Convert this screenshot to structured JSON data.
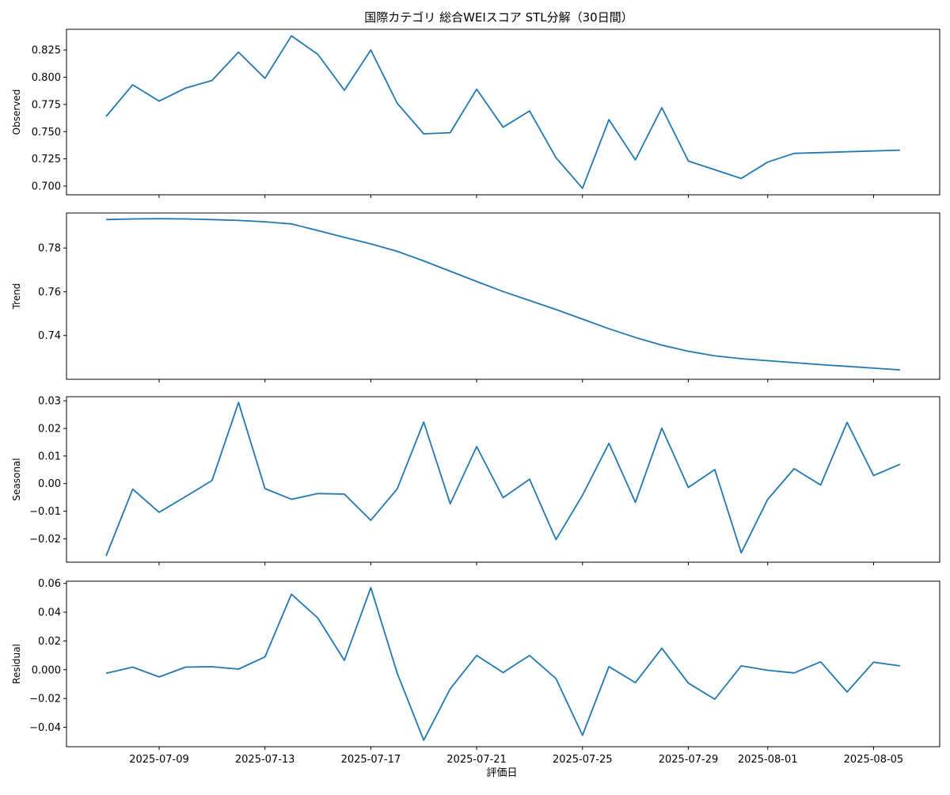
{
  "figure": {
    "title": "国際カテゴリ 総合WEIスコア STL分解（30日間）",
    "xlabel": "評価日",
    "line_color": "#1f77b4",
    "x_ticks": [
      "2025-07-09",
      "2025-07-13",
      "2025-07-17",
      "2025-07-21",
      "2025-07-25",
      "2025-07-29",
      "2025-08-01",
      "2025-08-05"
    ]
  },
  "chart_data": [
    {
      "type": "line",
      "ylabel": "Observed",
      "ylim": [
        0.692,
        0.844
      ],
      "yticks": [
        0.7,
        0.725,
        0.75,
        0.775,
        0.8,
        0.825
      ],
      "ytick_labels": [
        "0.700",
        "0.725",
        "0.750",
        "0.775",
        "0.800",
        "0.825"
      ],
      "x": [
        "2025-07-07",
        "2025-07-08",
        "2025-07-09",
        "2025-07-10",
        "2025-07-11",
        "2025-07-12",
        "2025-07-13",
        "2025-07-14",
        "2025-07-15",
        "2025-07-16",
        "2025-07-17",
        "2025-07-18",
        "2025-07-19",
        "2025-07-20",
        "2025-07-21",
        "2025-07-22",
        "2025-07-23",
        "2025-07-24",
        "2025-07-25",
        "2025-07-26",
        "2025-07-27",
        "2025-07-28",
        "2025-07-29",
        "2025-07-30",
        "2025-07-31",
        "2025-08-01",
        "2025-08-02",
        "2025-08-06"
      ],
      "values": [
        0.764,
        0.793,
        0.778,
        0.79,
        0.797,
        0.823,
        0.799,
        0.838,
        0.821,
        0.788,
        0.825,
        0.776,
        0.748,
        0.749,
        0.789,
        0.754,
        0.769,
        0.726,
        0.698,
        0.761,
        0.724,
        0.772,
        0.723,
        0.715,
        0.707,
        0.722,
        0.73,
        0.733
      ]
    },
    {
      "type": "line",
      "ylabel": "Trend",
      "ylim": [
        0.72,
        0.796
      ],
      "yticks": [
        0.74,
        0.76,
        0.78
      ],
      "ytick_labels": [
        "0.74",
        "0.76",
        "0.78"
      ],
      "x": [
        "2025-07-07",
        "2025-07-08",
        "2025-07-09",
        "2025-07-10",
        "2025-07-11",
        "2025-07-12",
        "2025-07-13",
        "2025-07-14",
        "2025-07-15",
        "2025-07-16",
        "2025-07-17",
        "2025-07-18",
        "2025-07-19",
        "2025-07-20",
        "2025-07-21",
        "2025-07-22",
        "2025-07-23",
        "2025-07-24",
        "2025-07-25",
        "2025-07-26",
        "2025-07-27",
        "2025-07-28",
        "2025-07-29",
        "2025-07-30",
        "2025-07-31",
        "2025-08-01",
        "2025-08-02",
        "2025-08-03",
        "2025-08-04",
        "2025-08-05",
        "2025-08-06"
      ],
      "values": [
        0.793,
        0.7933,
        0.7934,
        0.7933,
        0.793,
        0.7926,
        0.792,
        0.791,
        0.788,
        0.7849,
        0.7819,
        0.7785,
        0.7741,
        0.7694,
        0.7647,
        0.7601,
        0.756,
        0.7519,
        0.7475,
        0.7431,
        0.7391,
        0.7356,
        0.7328,
        0.7307,
        0.7294,
        0.7285,
        0.7276,
        0.7267,
        0.7259,
        0.7251,
        0.7243
      ]
    },
    {
      "type": "line",
      "ylabel": "Seasonal",
      "ylim": [
        -0.0285,
        0.0315
      ],
      "yticks": [
        -0.02,
        -0.01,
        0.0,
        0.01,
        0.02,
        0.03
      ],
      "ytick_labels": [
        "−0.02",
        "−0.01",
        "0.00",
        "0.01",
        "0.02",
        "0.03"
      ],
      "x": [
        "2025-07-07",
        "2025-07-08",
        "2025-07-09",
        "2025-07-10",
        "2025-07-11",
        "2025-07-12",
        "2025-07-13",
        "2025-07-14",
        "2025-07-15",
        "2025-07-16",
        "2025-07-17",
        "2025-07-18",
        "2025-07-19",
        "2025-07-20",
        "2025-07-21",
        "2025-07-22",
        "2025-07-23",
        "2025-07-24",
        "2025-07-25",
        "2025-07-26",
        "2025-07-27",
        "2025-07-28",
        "2025-07-29",
        "2025-07-30",
        "2025-07-31",
        "2025-08-01",
        "2025-08-02",
        "2025-08-03",
        "2025-08-04",
        "2025-08-05",
        "2025-08-06"
      ],
      "values": [
        -0.0262,
        -0.002,
        -0.0104,
        -0.0047,
        0.0011,
        0.0294,
        -0.0018,
        -0.0057,
        -0.0036,
        -0.0038,
        -0.0133,
        -0.0019,
        0.0223,
        -0.0073,
        0.0134,
        -0.0051,
        0.0016,
        -0.0203,
        -0.0042,
        0.0146,
        -0.0068,
        0.0201,
        -0.0014,
        0.0051,
        -0.0251,
        -0.0057,
        0.0054,
        -0.0005,
        0.0222,
        0.0029,
        0.007
      ]
    },
    {
      "type": "line",
      "ylabel": "Residual",
      "ylim": [
        -0.0535,
        0.0615
      ],
      "yticks": [
        -0.04,
        -0.02,
        0.0,
        0.02,
        0.04,
        0.06
      ],
      "ytick_labels": [
        "−0.04",
        "−0.02",
        "0.000",
        "0.02",
        "0.04",
        "0.06"
      ],
      "x": [
        "2025-07-07",
        "2025-07-08",
        "2025-07-09",
        "2025-07-10",
        "2025-07-11",
        "2025-07-12",
        "2025-07-13",
        "2025-07-14",
        "2025-07-15",
        "2025-07-16",
        "2025-07-17",
        "2025-07-18",
        "2025-07-19",
        "2025-07-20",
        "2025-07-21",
        "2025-07-22",
        "2025-07-23",
        "2025-07-24",
        "2025-07-25",
        "2025-07-26",
        "2025-07-27",
        "2025-07-28",
        "2025-07-29",
        "2025-07-30",
        "2025-07-31",
        "2025-08-01",
        "2025-08-02",
        "2025-08-03",
        "2025-08-04",
        "2025-08-05",
        "2025-08-06"
      ],
      "values": [
        -0.0025,
        0.0018,
        -0.005,
        0.0018,
        0.0021,
        0.0004,
        0.0089,
        0.0525,
        0.0359,
        0.0065,
        0.057,
        -0.0025,
        -0.049,
        -0.0133,
        0.0099,
        -0.002,
        0.0099,
        -0.0062,
        -0.0455,
        0.0022,
        -0.009,
        0.0149,
        -0.0093,
        -0.0205,
        0.0027,
        -0.0004,
        -0.0022,
        0.0055,
        -0.0155,
        0.0052,
        0.0027
      ]
    }
  ]
}
